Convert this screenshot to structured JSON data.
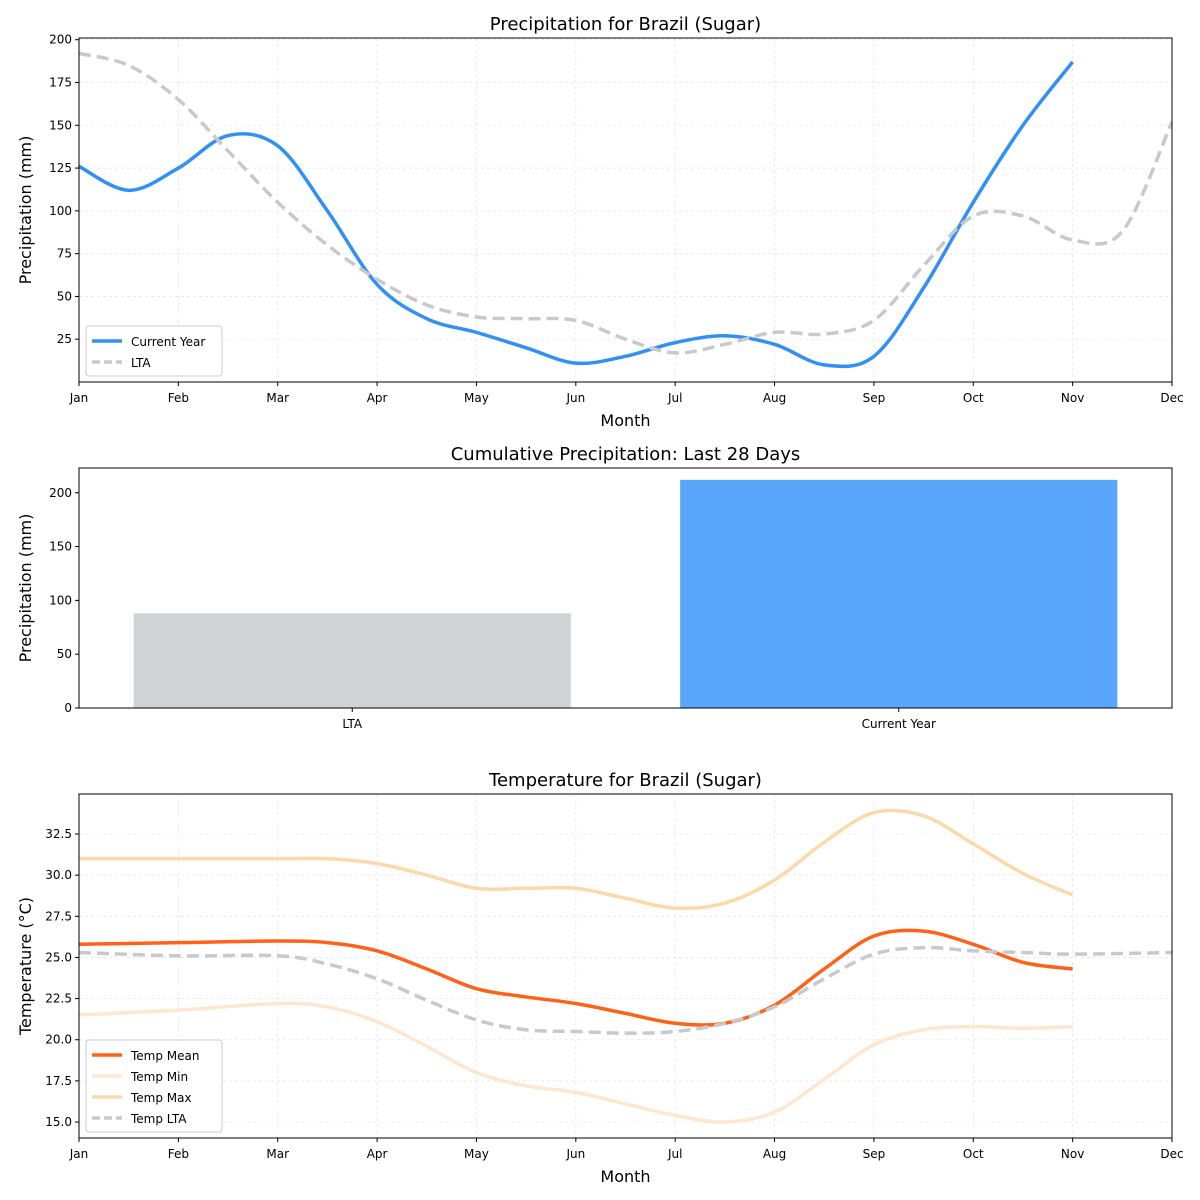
{
  "chart_data": [
    {
      "type": "line",
      "title": "Precipitation for Brazil (Sugar)",
      "xlabel": "Month",
      "ylabel": "Precipitation (mm)",
      "xticks": [
        "Jan",
        "Feb",
        "Mar",
        "Apr",
        "May",
        "Jun",
        "Jul",
        "Aug",
        "Sep",
        "Oct",
        "Nov",
        "Dec"
      ],
      "yticks": [
        25,
        50,
        75,
        100,
        125,
        150,
        175,
        200
      ],
      "ylim": [
        0,
        201
      ],
      "xlim": [
        0,
        11
      ],
      "grid": true,
      "legend": "bottom-left",
      "series": [
        {
          "name": "Current Year",
          "color": "#3190f5",
          "dash": false,
          "x": [
            0,
            0.5,
            1,
            1.5,
            2,
            2.5,
            3,
            3.5,
            4,
            4.5,
            5,
            5.5,
            6,
            6.5,
            7,
            7.5,
            8,
            8.5,
            9,
            9.5,
            10
          ],
          "y": [
            126,
            112,
            125,
            144,
            138,
            100,
            57,
            37,
            29,
            20,
            11,
            15,
            23,
            27,
            22,
            10,
            15,
            55,
            105,
            150,
            187
          ]
        },
        {
          "name": "LTA",
          "color": "#c8c9ca",
          "dash": true,
          "x": [
            0,
            0.5,
            1,
            1.5,
            2,
            2.5,
            3,
            3.5,
            4,
            4.5,
            5,
            5.5,
            6,
            6.5,
            7,
            7.5,
            8,
            8.5,
            9,
            9.5,
            10,
            10.5,
            11
          ],
          "y": [
            192,
            185,
            165,
            135,
            105,
            80,
            60,
            45,
            38,
            37,
            36,
            25,
            17,
            22,
            29,
            28,
            36,
            68,
            97,
            97,
            83,
            88,
            152
          ]
        }
      ]
    },
    {
      "type": "bar",
      "title": "Cumulative Precipitation: Last 28 Days",
      "xlabel": "",
      "ylabel": "Precipitation (mm)",
      "categories": [
        "LTA",
        "Current Year"
      ],
      "values": [
        88,
        212
      ],
      "colors": [
        "#d1d4d7",
        "#59a6fa"
      ],
      "yticks": [
        0,
        50,
        100,
        150,
        200
      ],
      "ylim": [
        0,
        223
      ]
    },
    {
      "type": "line",
      "title": "Temperature for Brazil (Sugar)",
      "xlabel": "Month",
      "ylabel": "Temperature (°C)",
      "xticks": [
        "Jan",
        "Feb",
        "Mar",
        "Apr",
        "May",
        "Jun",
        "Jul",
        "Aug",
        "Sep",
        "Oct",
        "Nov",
        "Dec"
      ],
      "yticks": [
        15.0,
        17.5,
        20.0,
        22.5,
        25.0,
        27.5,
        30.0,
        32.5
      ],
      "ytick_labels": [
        "15.0",
        "17.5",
        "20.0",
        "22.5",
        "25.0",
        "27.5",
        "30.0",
        "32.5"
      ],
      "ylim": [
        14.03,
        34.93
      ],
      "xlim": [
        0,
        11
      ],
      "grid": true,
      "legend": "bottom-left",
      "series": [
        {
          "name": "Temp Mean",
          "color": "#ff6217",
          "dash": false,
          "x": [
            0,
            1,
            2,
            2.5,
            3,
            3.5,
            4,
            4.5,
            5,
            5.5,
            6,
            6.5,
            7,
            7.5,
            8,
            8.5,
            9,
            9.5,
            10
          ],
          "y": [
            25.8,
            25.9,
            26.0,
            25.9,
            25.4,
            24.3,
            23.1,
            22.6,
            22.2,
            21.6,
            21.0,
            21.0,
            22.1,
            24.3,
            26.3,
            26.6,
            25.8,
            24.7,
            24.3
          ]
        },
        {
          "name": "Temp Min",
          "color": "#ffe6cf",
          "dash": false,
          "x": [
            0,
            1,
            2,
            2.5,
            3,
            3.5,
            4,
            4.5,
            5,
            5.5,
            6,
            6.5,
            7,
            7.5,
            8,
            8.5,
            9,
            9.5,
            10
          ],
          "y": [
            21.5,
            21.8,
            22.2,
            22.0,
            21.1,
            19.6,
            18.0,
            17.2,
            16.8,
            16.1,
            15.4,
            15.0,
            15.6,
            17.6,
            19.7,
            20.6,
            20.8,
            20.7,
            20.8
          ]
        },
        {
          "name": "Temp Max",
          "color": "#fcd9a8",
          "dash": false,
          "x": [
            0,
            1,
            2,
            2.5,
            3,
            3.5,
            4,
            4.5,
            5,
            5.5,
            6,
            6.5,
            7,
            7.5,
            8,
            8.5,
            9,
            9.5,
            10
          ],
          "y": [
            31.0,
            31.0,
            31.0,
            31.0,
            30.7,
            30.0,
            29.2,
            29.2,
            29.2,
            28.6,
            28.0,
            28.3,
            29.7,
            32.0,
            33.8,
            33.6,
            31.9,
            30.1,
            28.8
          ]
        },
        {
          "name": "Temp LTA",
          "color": "#c8c9ca",
          "dash": true,
          "x": [
            0,
            1,
            2,
            2.5,
            3,
            3.5,
            4,
            4.5,
            5,
            5.5,
            6,
            6.5,
            7,
            7.5,
            8,
            8.5,
            9,
            9.5,
            10,
            11
          ],
          "y": [
            25.3,
            25.1,
            25.1,
            24.6,
            23.7,
            22.4,
            21.2,
            20.6,
            20.5,
            20.4,
            20.5,
            21.0,
            22.0,
            23.7,
            25.2,
            25.6,
            25.4,
            25.3,
            25.2,
            25.3
          ]
        }
      ]
    }
  ]
}
